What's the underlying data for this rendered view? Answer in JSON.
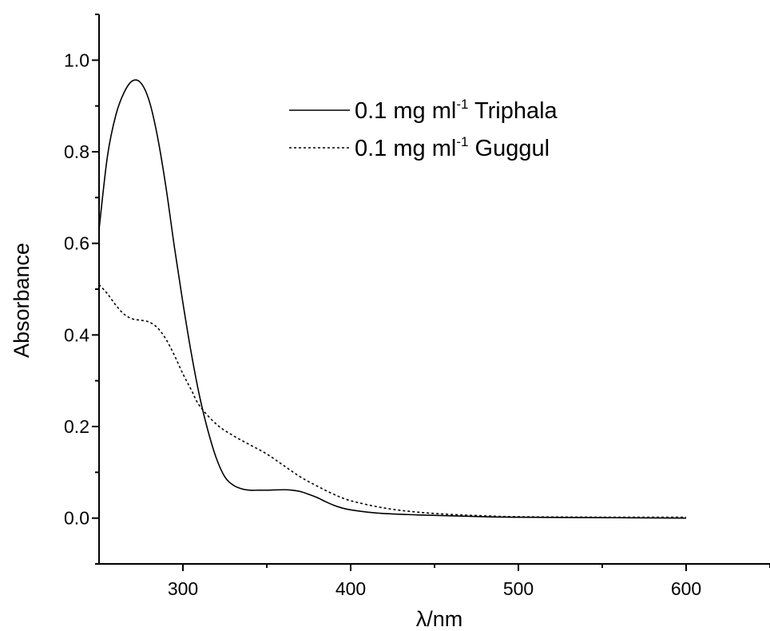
{
  "chart_data": {
    "type": "line",
    "xlabel": "λ/nm",
    "ylabel": "Absorbance",
    "xlim": [
      250,
      650
    ],
    "ylim": [
      -0.1,
      1.1
    ],
    "x_ticks": [
      300,
      400,
      500,
      600
    ],
    "x_tick_labels": [
      "300",
      "400",
      "500",
      "600"
    ],
    "y_ticks": [
      0.0,
      0.2,
      0.4,
      0.6,
      0.8,
      1.0
    ],
    "y_tick_labels": [
      "0.0",
      "0.2",
      "0.4",
      "0.6",
      "0.8",
      "1.0"
    ],
    "grid": false,
    "legend_position": "top-right",
    "series": [
      {
        "name": "0.1 mg ml-1 Triphala",
        "legend_parts": {
          "prefix": "0.1 mg ml",
          "superscript": "-1",
          "suffix": " Triphala"
        },
        "style": "solid",
        "color": "#000000",
        "x": [
          250,
          255,
          260,
          265,
          270,
          275,
          280,
          285,
          290,
          295,
          300,
          305,
          310,
          315,
          320,
          325,
          330,
          335,
          340,
          345,
          350,
          360,
          365,
          370,
          375,
          380,
          385,
          390,
          395,
          400,
          410,
          420,
          440,
          460,
          480,
          500,
          550,
          600
        ],
        "y": [
          0.63,
          0.79,
          0.88,
          0.93,
          0.955,
          0.95,
          0.91,
          0.83,
          0.72,
          0.59,
          0.47,
          0.36,
          0.265,
          0.19,
          0.13,
          0.09,
          0.072,
          0.064,
          0.061,
          0.061,
          0.061,
          0.062,
          0.061,
          0.058,
          0.052,
          0.045,
          0.036,
          0.028,
          0.022,
          0.018,
          0.013,
          0.01,
          0.007,
          0.005,
          0.003,
          0.002,
          0.001,
          0.0
        ]
      },
      {
        "name": "0.1 mg ml-1 Guggul",
        "legend_parts": {
          "prefix": "0.1 mg ml",
          "superscript": "-1",
          "suffix": " Guggul"
        },
        "style": "dotted",
        "color": "#000000",
        "x": [
          250,
          255,
          260,
          265,
          270,
          275,
          280,
          285,
          290,
          295,
          300,
          305,
          310,
          320,
          330,
          340,
          350,
          360,
          370,
          380,
          390,
          400,
          420,
          440,
          460,
          480,
          500,
          550,
          600
        ],
        "y": [
          0.51,
          0.49,
          0.465,
          0.445,
          0.435,
          0.432,
          0.428,
          0.415,
          0.39,
          0.355,
          0.315,
          0.28,
          0.245,
          0.205,
          0.18,
          0.16,
          0.14,
          0.115,
          0.09,
          0.07,
          0.052,
          0.038,
          0.022,
          0.013,
          0.008,
          0.005,
          0.003,
          0.002,
          0.002
        ]
      }
    ]
  }
}
